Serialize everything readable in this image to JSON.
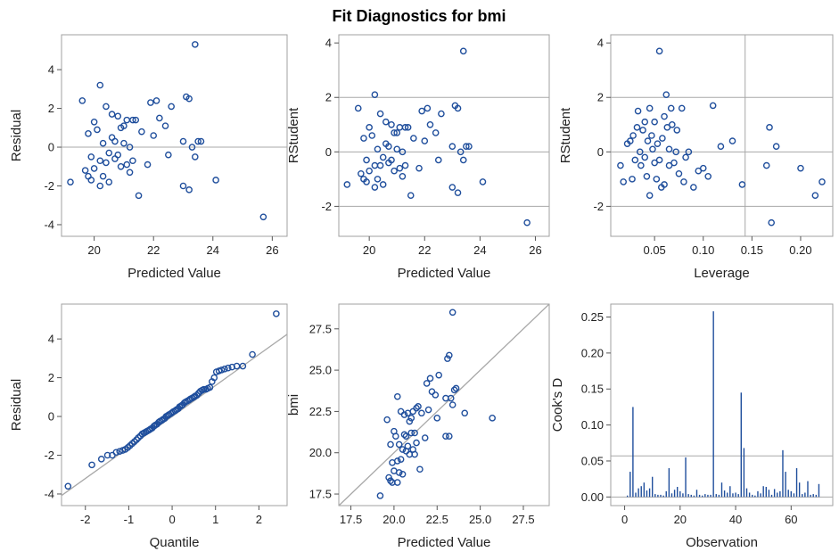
{
  "title": "Fit Diagnostics for bmi",
  "colors": {
    "marker": "#1f4e9c",
    "frame": "#a0a0a0",
    "refline": "#a8a8a8",
    "text": "#222222"
  },
  "chart_data": [
    {
      "type": "scatter",
      "xlabel": "Predicted Value",
      "ylabel": "Residual",
      "xlim": [
        18.9,
        26.5
      ],
      "ylim": [
        -4.6,
        5.8
      ],
      "xticks": [
        20,
        22,
        24,
        26
      ],
      "yticks": [
        -4,
        -2,
        0,
        2,
        4
      ],
      "hlines": [
        0
      ],
      "x": [
        19.2,
        19.6,
        19.7,
        19.8,
        19.8,
        19.9,
        19.9,
        20.0,
        20.0,
        20.1,
        20.2,
        20.2,
        20.2,
        20.3,
        20.3,
        20.4,
        20.4,
        20.5,
        20.5,
        20.6,
        20.6,
        20.7,
        20.7,
        20.8,
        20.8,
        20.9,
        20.9,
        21.0,
        21.0,
        21.1,
        21.1,
        21.2,
        21.2,
        21.3,
        21.3,
        21.4,
        21.5,
        21.6,
        21.8,
        21.9,
        22.0,
        22.1,
        22.2,
        22.4,
        22.5,
        22.6,
        23.0,
        23.1,
        23.2,
        23.3,
        23.4,
        23.5,
        23.0,
        23.2,
        23.4,
        23.6,
        24.1,
        25.7
      ],
      "y": [
        -1.8,
        2.4,
        -1.2,
        -1.5,
        0.7,
        -1.7,
        -0.5,
        1.3,
        -1.1,
        0.9,
        -0.7,
        -2.0,
        3.2,
        -1.5,
        0.2,
        -0.8,
        2.1,
        -1.8,
        -0.3,
        0.5,
        1.7,
        -0.6,
        0.3,
        1.6,
        -0.4,
        1.0,
        -1.0,
        1.1,
        0.2,
        -0.9,
        1.4,
        0.0,
        -1.3,
        1.4,
        -0.7,
        1.4,
        -2.5,
        0.8,
        -0.9,
        2.3,
        0.6,
        2.4,
        1.5,
        1.1,
        -0.4,
        2.1,
        0.3,
        2.6,
        2.5,
        0.0,
        -0.5,
        0.3,
        -2.0,
        -2.2,
        5.3,
        0.3,
        -1.7,
        -3.6
      ]
    },
    {
      "type": "scatter",
      "xlabel": "Predicted Value",
      "ylabel": "RStudent",
      "xlim": [
        18.9,
        26.5
      ],
      "ylim": [
        -3.1,
        4.3
      ],
      "xticks": [
        20,
        22,
        24,
        26
      ],
      "yticks": [
        -2,
        0,
        2,
        4
      ],
      "hlines": [
        -2,
        0,
        2
      ],
      "x": [
        19.2,
        19.6,
        19.7,
        19.8,
        19.8,
        19.9,
        19.9,
        20.0,
        20.0,
        20.1,
        20.2,
        20.2,
        20.2,
        20.3,
        20.3,
        20.4,
        20.4,
        20.5,
        20.5,
        20.6,
        20.6,
        20.7,
        20.7,
        20.8,
        20.8,
        20.9,
        20.9,
        21.0,
        21.0,
        21.1,
        21.1,
        21.2,
        21.2,
        21.3,
        21.3,
        21.4,
        21.5,
        21.6,
        21.8,
        21.9,
        22.0,
        22.1,
        22.2,
        22.4,
        22.5,
        22.6,
        23.0,
        23.1,
        23.2,
        23.3,
        23.4,
        23.5,
        23.0,
        23.2,
        23.4,
        23.6,
        24.1,
        25.7
      ],
      "y": [
        -1.2,
        1.6,
        -0.8,
        -1.0,
        0.5,
        -1.1,
        -0.3,
        0.9,
        -0.7,
        0.6,
        -0.5,
        -1.3,
        2.1,
        -1.0,
        0.1,
        -0.5,
        1.4,
        -1.2,
        -0.2,
        0.3,
        1.1,
        -0.4,
        0.2,
        1.0,
        -0.3,
        0.7,
        -0.7,
        0.7,
        0.1,
        -0.6,
        0.9,
        0.0,
        -0.9,
        0.9,
        -0.5,
        0.9,
        -1.6,
        0.5,
        -0.6,
        1.5,
        0.4,
        1.6,
        1.0,
        0.7,
        -0.3,
        1.4,
        0.2,
        1.7,
        1.6,
        0.0,
        -0.3,
        0.2,
        -1.3,
        -1.5,
        3.7,
        0.2,
        -1.1,
        -2.6
      ]
    },
    {
      "type": "scatter",
      "xlabel": "Leverage",
      "ylabel": "RStudent",
      "xlim": [
        0.005,
        0.233
      ],
      "ylim": [
        -3.1,
        4.3
      ],
      "xticks": [
        0.05,
        0.1,
        0.15,
        0.2
      ],
      "xticklabels": [
        "0.05",
        "0.10",
        "0.15",
        "0.20"
      ],
      "yticks": [
        -2,
        0,
        2,
        4
      ],
      "hlines": [
        -2,
        0,
        2
      ],
      "vlines": [
        0.143
      ],
      "x": [
        0.015,
        0.018,
        0.022,
        0.025,
        0.027,
        0.028,
        0.03,
        0.032,
        0.033,
        0.035,
        0.036,
        0.038,
        0.04,
        0.04,
        0.042,
        0.043,
        0.045,
        0.045,
        0.047,
        0.048,
        0.05,
        0.05,
        0.052,
        0.053,
        0.055,
        0.055,
        0.057,
        0.058,
        0.06,
        0.06,
        0.062,
        0.063,
        0.065,
        0.065,
        0.067,
        0.068,
        0.07,
        0.072,
        0.073,
        0.075,
        0.078,
        0.08,
        0.082,
        0.085,
        0.09,
        0.095,
        0.1,
        0.105,
        0.11,
        0.118,
        0.13,
        0.14,
        0.165,
        0.168,
        0.17,
        0.175,
        0.2,
        0.215,
        0.222
      ],
      "y": [
        -0.5,
        -1.1,
        0.3,
        0.4,
        -1.0,
        0.6,
        -0.3,
        0.9,
        1.5,
        0.0,
        -0.5,
        0.8,
        1.1,
        -0.2,
        -0.9,
        0.4,
        1.6,
        -1.6,
        0.6,
        0.1,
        -0.4,
        1.1,
        -1.0,
        0.3,
        -0.3,
        3.7,
        -1.3,
        0.5,
        1.3,
        -1.2,
        2.1,
        0.9,
        0.1,
        -0.5,
        1.6,
        1.0,
        -0.4,
        0.0,
        0.8,
        -0.8,
        1.6,
        -1.1,
        -0.2,
        0.0,
        -1.3,
        -0.7,
        -0.6,
        -0.9,
        1.7,
        0.2,
        0.4,
        -1.2,
        -0.5,
        0.9,
        -2.6,
        0.2,
        -0.6,
        -1.6,
        -1.1
      ]
    },
    {
      "type": "scatter",
      "xlabel": "Quantile",
      "ylabel": "Residual",
      "xlim": [
        -2.55,
        2.65
      ],
      "ylim": [
        -4.6,
        5.8
      ],
      "xticks": [
        -2,
        -1,
        0,
        1,
        2
      ],
      "yticks": [
        -4,
        -2,
        0,
        2,
        4
      ],
      "refline": {
        "slope": 1.6,
        "intercept": 0
      },
      "x": [
        -2.4,
        -1.85,
        -1.63,
        -1.49,
        -1.38,
        -1.29,
        -1.21,
        -1.14,
        -1.08,
        -1.02,
        -0.97,
        -0.92,
        -0.87,
        -0.82,
        -0.78,
        -0.73,
        -0.69,
        -0.65,
        -0.61,
        -0.57,
        -0.53,
        -0.5,
        -0.46,
        -0.42,
        -0.39,
        -0.35,
        -0.31,
        -0.28,
        -0.24,
        -0.21,
        -0.17,
        -0.14,
        -0.1,
        -0.07,
        -0.03,
        0.0,
        0.03,
        0.07,
        0.1,
        0.14,
        0.17,
        0.21,
        0.24,
        0.28,
        0.31,
        0.35,
        0.39,
        0.42,
        0.46,
        0.5,
        0.53,
        0.57,
        0.61,
        0.65,
        0.69,
        0.73,
        0.78,
        0.82,
        0.87,
        0.92,
        0.97,
        1.02,
        1.08,
        1.14,
        1.21,
        1.29,
        1.38,
        1.49,
        1.63,
        1.85,
        2.4
      ],
      "y": [
        -3.6,
        -2.5,
        -2.2,
        -2.0,
        -2.0,
        -1.85,
        -1.8,
        -1.75,
        -1.7,
        -1.6,
        -1.5,
        -1.4,
        -1.3,
        -1.2,
        -1.1,
        -1.0,
        -0.9,
        -0.85,
        -0.8,
        -0.75,
        -0.7,
        -0.65,
        -0.6,
        -0.5,
        -0.45,
        -0.4,
        -0.3,
        -0.25,
        -0.2,
        -0.15,
        -0.1,
        0.0,
        0.05,
        0.1,
        0.15,
        0.2,
        0.25,
        0.3,
        0.35,
        0.4,
        0.5,
        0.55,
        0.6,
        0.7,
        0.75,
        0.8,
        0.85,
        0.9,
        0.95,
        1.0,
        1.05,
        1.1,
        1.2,
        1.3,
        1.35,
        1.4,
        1.4,
        1.45,
        1.5,
        1.8,
        2.0,
        2.3,
        2.35,
        2.4,
        2.45,
        2.5,
        2.55,
        2.6,
        2.6,
        3.2,
        5.3
      ]
    },
    {
      "type": "scatter",
      "xlabel": "Predicted Value",
      "ylabel": "bmi",
      "xlim": [
        16.8,
        29.0
      ],
      "ylim": [
        16.8,
        29.0
      ],
      "xticks": [
        17.5,
        20.0,
        22.5,
        25.0,
        27.5
      ],
      "xticklabels": [
        "17.5",
        "20.0",
        "22.5",
        "25.0",
        "27.5"
      ],
      "yticks": [
        17.5,
        20.0,
        22.5,
        25.0,
        27.5
      ],
      "yticklabels": [
        "17.5",
        "20.0",
        "22.5",
        "25.0",
        "27.5"
      ],
      "refline": {
        "slope": 1,
        "intercept": 0
      },
      "x": [
        19.2,
        19.6,
        19.7,
        19.8,
        19.8,
        19.9,
        19.9,
        20.0,
        20.0,
        20.1,
        20.2,
        20.2,
        20.2,
        20.3,
        20.3,
        20.4,
        20.4,
        20.5,
        20.5,
        20.6,
        20.6,
        20.7,
        20.7,
        20.8,
        20.8,
        20.9,
        20.9,
        21.0,
        21.0,
        21.1,
        21.1,
        21.2,
        21.2,
        21.3,
        21.3,
        21.4,
        21.5,
        21.6,
        21.8,
        21.9,
        22.0,
        22.1,
        22.2,
        22.4,
        22.5,
        22.6,
        23.0,
        23.1,
        23.2,
        23.3,
        23.4,
        23.5,
        23.0,
        23.2,
        23.4,
        23.6,
        24.1,
        25.7
      ],
      "y": [
        17.4,
        22.0,
        18.5,
        18.3,
        20.5,
        18.2,
        19.4,
        21.3,
        18.9,
        21.0,
        19.5,
        18.2,
        23.4,
        18.8,
        20.5,
        19.6,
        22.5,
        18.7,
        20.2,
        21.1,
        22.3,
        20.1,
        21.0,
        22.4,
        20.4,
        21.9,
        19.9,
        22.1,
        21.2,
        20.2,
        22.5,
        21.2,
        19.9,
        22.7,
        20.6,
        22.8,
        19.0,
        22.4,
        20.9,
        24.2,
        22.6,
        24.5,
        23.7,
        23.5,
        22.1,
        24.7,
        23.3,
        25.7,
        25.9,
        23.3,
        22.9,
        23.8,
        21.0,
        21.0,
        28.5,
        23.9,
        22.4,
        22.1
      ]
    },
    {
      "type": "bar",
      "xlabel": "Observation",
      "ylabel": "Cook's D",
      "xlim": [
        -5,
        75
      ],
      "ylim": [
        -0.012,
        0.268
      ],
      "xticks": [
        0,
        20,
        40,
        60
      ],
      "yticks": [
        0.0,
        0.05,
        0.1,
        0.15,
        0.2,
        0.25
      ],
      "yticklabels": [
        "0.00",
        "0.05",
        "0.10",
        "0.15",
        "0.20",
        "0.25"
      ],
      "hlines": [
        0.057
      ],
      "x": [
        1,
        2,
        3,
        4,
        5,
        6,
        7,
        8,
        9,
        10,
        11,
        12,
        13,
        14,
        15,
        16,
        17,
        18,
        19,
        20,
        21,
        22,
        23,
        24,
        25,
        26,
        27,
        28,
        29,
        30,
        31,
        32,
        33,
        34,
        35,
        36,
        37,
        38,
        39,
        40,
        41,
        42,
        43,
        44,
        45,
        46,
        47,
        48,
        49,
        50,
        51,
        52,
        53,
        54,
        55,
        56,
        57,
        58,
        59,
        60,
        61,
        62,
        63,
        64,
        65,
        66,
        67,
        68,
        69,
        70
      ],
      "values": [
        0.002,
        0.035,
        0.125,
        0.006,
        0.012,
        0.015,
        0.02,
        0.009,
        0.012,
        0.028,
        0.004,
        0.003,
        0.003,
        0.002,
        0.008,
        0.04,
        0.005,
        0.01,
        0.014,
        0.008,
        0.005,
        0.055,
        0.004,
        0.003,
        0.002,
        0.01,
        0.003,
        0.002,
        0.004,
        0.003,
        0.003,
        0.258,
        0.004,
        0.003,
        0.02,
        0.009,
        0.006,
        0.015,
        0.005,
        0.006,
        0.004,
        0.145,
        0.068,
        0.012,
        0.006,
        0.003,
        0.002,
        0.008,
        0.005,
        0.015,
        0.014,
        0.01,
        0.003,
        0.011,
        0.006,
        0.008,
        0.065,
        0.035,
        0.01,
        0.008,
        0.005,
        0.04,
        0.02,
        0.004,
        0.006,
        0.022,
        0.003,
        0.004,
        0.003,
        0.018
      ]
    }
  ]
}
